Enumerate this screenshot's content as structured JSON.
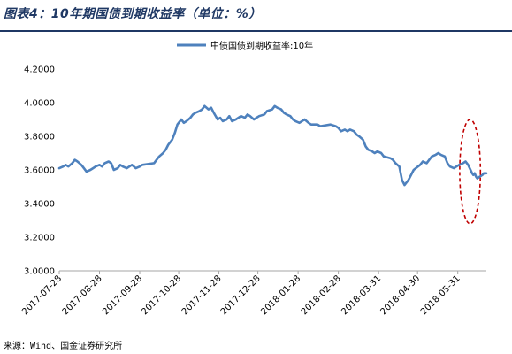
{
  "figure": {
    "title": "图表4：10年期国债到期收益率（单位：%）",
    "source": "来源：Wind、国金证券研究所"
  },
  "colors": {
    "series": "#4e81bd",
    "annotation": "#c00000",
    "title": "#1f3864",
    "axis": "#a6a6a6"
  },
  "chart_data": {
    "type": "line",
    "title": "",
    "xlabel": "",
    "ylabel": "",
    "ylim": [
      3.0,
      4.2
    ],
    "xlim": [
      "2017-07-28",
      "2018-06-22"
    ],
    "grid": false,
    "legend_position": "top-center",
    "y_ticks": [
      "4.2000",
      "4.0000",
      "3.8000",
      "3.6000",
      "3.4000",
      "3.2000",
      "3.0000"
    ],
    "y_tick_values": [
      4.2,
      4.0,
      3.8,
      3.6,
      3.4,
      3.2,
      3.0
    ],
    "x_ticks": [
      "2017-07-28",
      "2017-08-28",
      "2017-09-28",
      "2017-10-28",
      "2017-11-28",
      "2017-12-28",
      "2018-01-28",
      "2018-02-28",
      "2018-03-31",
      "2018-04-30",
      "2018-05-31"
    ],
    "annotation": {
      "type": "dashed-ellipse",
      "x_from": "2018-06-07",
      "x_to": "2018-06-12",
      "y_from": 3.28,
      "y_to": 3.9
    },
    "series": [
      {
        "name": "中债国债到期收益率:10年",
        "points": [
          [
            "2017-07-28",
            3.61
          ],
          [
            "2017-07-31",
            3.62
          ],
          [
            "2017-08-02",
            3.63
          ],
          [
            "2017-08-04",
            3.62
          ],
          [
            "2017-08-07",
            3.64
          ],
          [
            "2017-08-09",
            3.66
          ],
          [
            "2017-08-11",
            3.65
          ],
          [
            "2017-08-14",
            3.63
          ],
          [
            "2017-08-16",
            3.61
          ],
          [
            "2017-08-18",
            3.59
          ],
          [
            "2017-08-21",
            3.6
          ],
          [
            "2017-08-23",
            3.61
          ],
          [
            "2017-08-25",
            3.62
          ],
          [
            "2017-08-28",
            3.63
          ],
          [
            "2017-08-30",
            3.62
          ],
          [
            "2017-09-01",
            3.64
          ],
          [
            "2017-09-04",
            3.65
          ],
          [
            "2017-09-06",
            3.64
          ],
          [
            "2017-09-08",
            3.6
          ],
          [
            "2017-09-11",
            3.61
          ],
          [
            "2017-09-13",
            3.63
          ],
          [
            "2017-09-15",
            3.62
          ],
          [
            "2017-09-18",
            3.61
          ],
          [
            "2017-09-20",
            3.62
          ],
          [
            "2017-09-22",
            3.63
          ],
          [
            "2017-09-25",
            3.61
          ],
          [
            "2017-09-28",
            3.62
          ],
          [
            "2017-09-30",
            3.63
          ],
          [
            "2017-10-09",
            3.64
          ],
          [
            "2017-10-11",
            3.66
          ],
          [
            "2017-10-13",
            3.68
          ],
          [
            "2017-10-16",
            3.7
          ],
          [
            "2017-10-18",
            3.72
          ],
          [
            "2017-10-20",
            3.75
          ],
          [
            "2017-10-23",
            3.78
          ],
          [
            "2017-10-25",
            3.82
          ],
          [
            "2017-10-27",
            3.87
          ],
          [
            "2017-10-30",
            3.9
          ],
          [
            "2017-11-01",
            3.88
          ],
          [
            "2017-11-03",
            3.89
          ],
          [
            "2017-11-06",
            3.91
          ],
          [
            "2017-11-08",
            3.93
          ],
          [
            "2017-11-10",
            3.94
          ],
          [
            "2017-11-13",
            3.95
          ],
          [
            "2017-11-15",
            3.96
          ],
          [
            "2017-11-17",
            3.98
          ],
          [
            "2017-11-20",
            3.96
          ],
          [
            "2017-11-22",
            3.97
          ],
          [
            "2017-11-24",
            3.94
          ],
          [
            "2017-11-27",
            3.9
          ],
          [
            "2017-11-29",
            3.91
          ],
          [
            "2017-12-01",
            3.89
          ],
          [
            "2017-12-04",
            3.9
          ],
          [
            "2017-12-06",
            3.92
          ],
          [
            "2017-12-08",
            3.89
          ],
          [
            "2017-12-11",
            3.9
          ],
          [
            "2017-12-13",
            3.91
          ],
          [
            "2017-12-15",
            3.92
          ],
          [
            "2017-12-18",
            3.91
          ],
          [
            "2017-12-20",
            3.93
          ],
          [
            "2017-12-22",
            3.92
          ],
          [
            "2017-12-25",
            3.9
          ],
          [
            "2017-12-27",
            3.91
          ],
          [
            "2017-12-29",
            3.92
          ],
          [
            "2018-01-02",
            3.93
          ],
          [
            "2018-01-04",
            3.95
          ],
          [
            "2018-01-08",
            3.96
          ],
          [
            "2018-01-10",
            3.98
          ],
          [
            "2018-01-12",
            3.97
          ],
          [
            "2018-01-15",
            3.96
          ],
          [
            "2018-01-17",
            3.94
          ],
          [
            "2018-01-19",
            3.93
          ],
          [
            "2018-01-22",
            3.92
          ],
          [
            "2018-01-24",
            3.9
          ],
          [
            "2018-01-26",
            3.89
          ],
          [
            "2018-01-29",
            3.88
          ],
          [
            "2018-01-31",
            3.89
          ],
          [
            "2018-02-02",
            3.9
          ],
          [
            "2018-02-05",
            3.88
          ],
          [
            "2018-02-07",
            3.87
          ],
          [
            "2018-02-09",
            3.87
          ],
          [
            "2018-02-12",
            3.87
          ],
          [
            "2018-02-14",
            3.86
          ],
          [
            "2018-02-22",
            3.87
          ],
          [
            "2018-02-26",
            3.86
          ],
          [
            "2018-02-28",
            3.85
          ],
          [
            "2018-03-02",
            3.83
          ],
          [
            "2018-03-05",
            3.84
          ],
          [
            "2018-03-07",
            3.83
          ],
          [
            "2018-03-09",
            3.84
          ],
          [
            "2018-03-12",
            3.83
          ],
          [
            "2018-03-14",
            3.81
          ],
          [
            "2018-03-16",
            3.8
          ],
          [
            "2018-03-19",
            3.78
          ],
          [
            "2018-03-21",
            3.74
          ],
          [
            "2018-03-23",
            3.72
          ],
          [
            "2018-03-26",
            3.71
          ],
          [
            "2018-03-28",
            3.7
          ],
          [
            "2018-03-30",
            3.71
          ],
          [
            "2018-04-02",
            3.7
          ],
          [
            "2018-04-04",
            3.68
          ],
          [
            "2018-04-09",
            3.67
          ],
          [
            "2018-04-11",
            3.66
          ],
          [
            "2018-04-13",
            3.64
          ],
          [
            "2018-04-16",
            3.62
          ],
          [
            "2018-04-18",
            3.54
          ],
          [
            "2018-04-20",
            3.51
          ],
          [
            "2018-04-23",
            3.54
          ],
          [
            "2018-04-25",
            3.57
          ],
          [
            "2018-04-27",
            3.6
          ],
          [
            "2018-05-02",
            3.63
          ],
          [
            "2018-05-04",
            3.65
          ],
          [
            "2018-05-07",
            3.64
          ],
          [
            "2018-05-09",
            3.66
          ],
          [
            "2018-05-11",
            3.68
          ],
          [
            "2018-05-14",
            3.69
          ],
          [
            "2018-05-16",
            3.7
          ],
          [
            "2018-05-18",
            3.69
          ],
          [
            "2018-05-21",
            3.68
          ],
          [
            "2018-05-23",
            3.64
          ],
          [
            "2018-05-25",
            3.62
          ],
          [
            "2018-05-28",
            3.61
          ],
          [
            "2018-05-30",
            3.62
          ],
          [
            "2018-06-01",
            3.63
          ],
          [
            "2018-06-04",
            3.64
          ],
          [
            "2018-06-06",
            3.65
          ],
          [
            "2018-06-08",
            3.63
          ],
          [
            "2018-06-11",
            3.58
          ],
          [
            "2018-06-12",
            3.57
          ],
          [
            "2018-06-13",
            3.58
          ],
          [
            "2018-06-14",
            3.56
          ],
          [
            "2018-06-15",
            3.55
          ],
          [
            "2018-06-19",
            3.57
          ],
          [
            "2018-06-20",
            3.58
          ],
          [
            "2018-06-21",
            3.58
          ],
          [
            "2018-06-22",
            3.58
          ]
        ]
      }
    ]
  }
}
